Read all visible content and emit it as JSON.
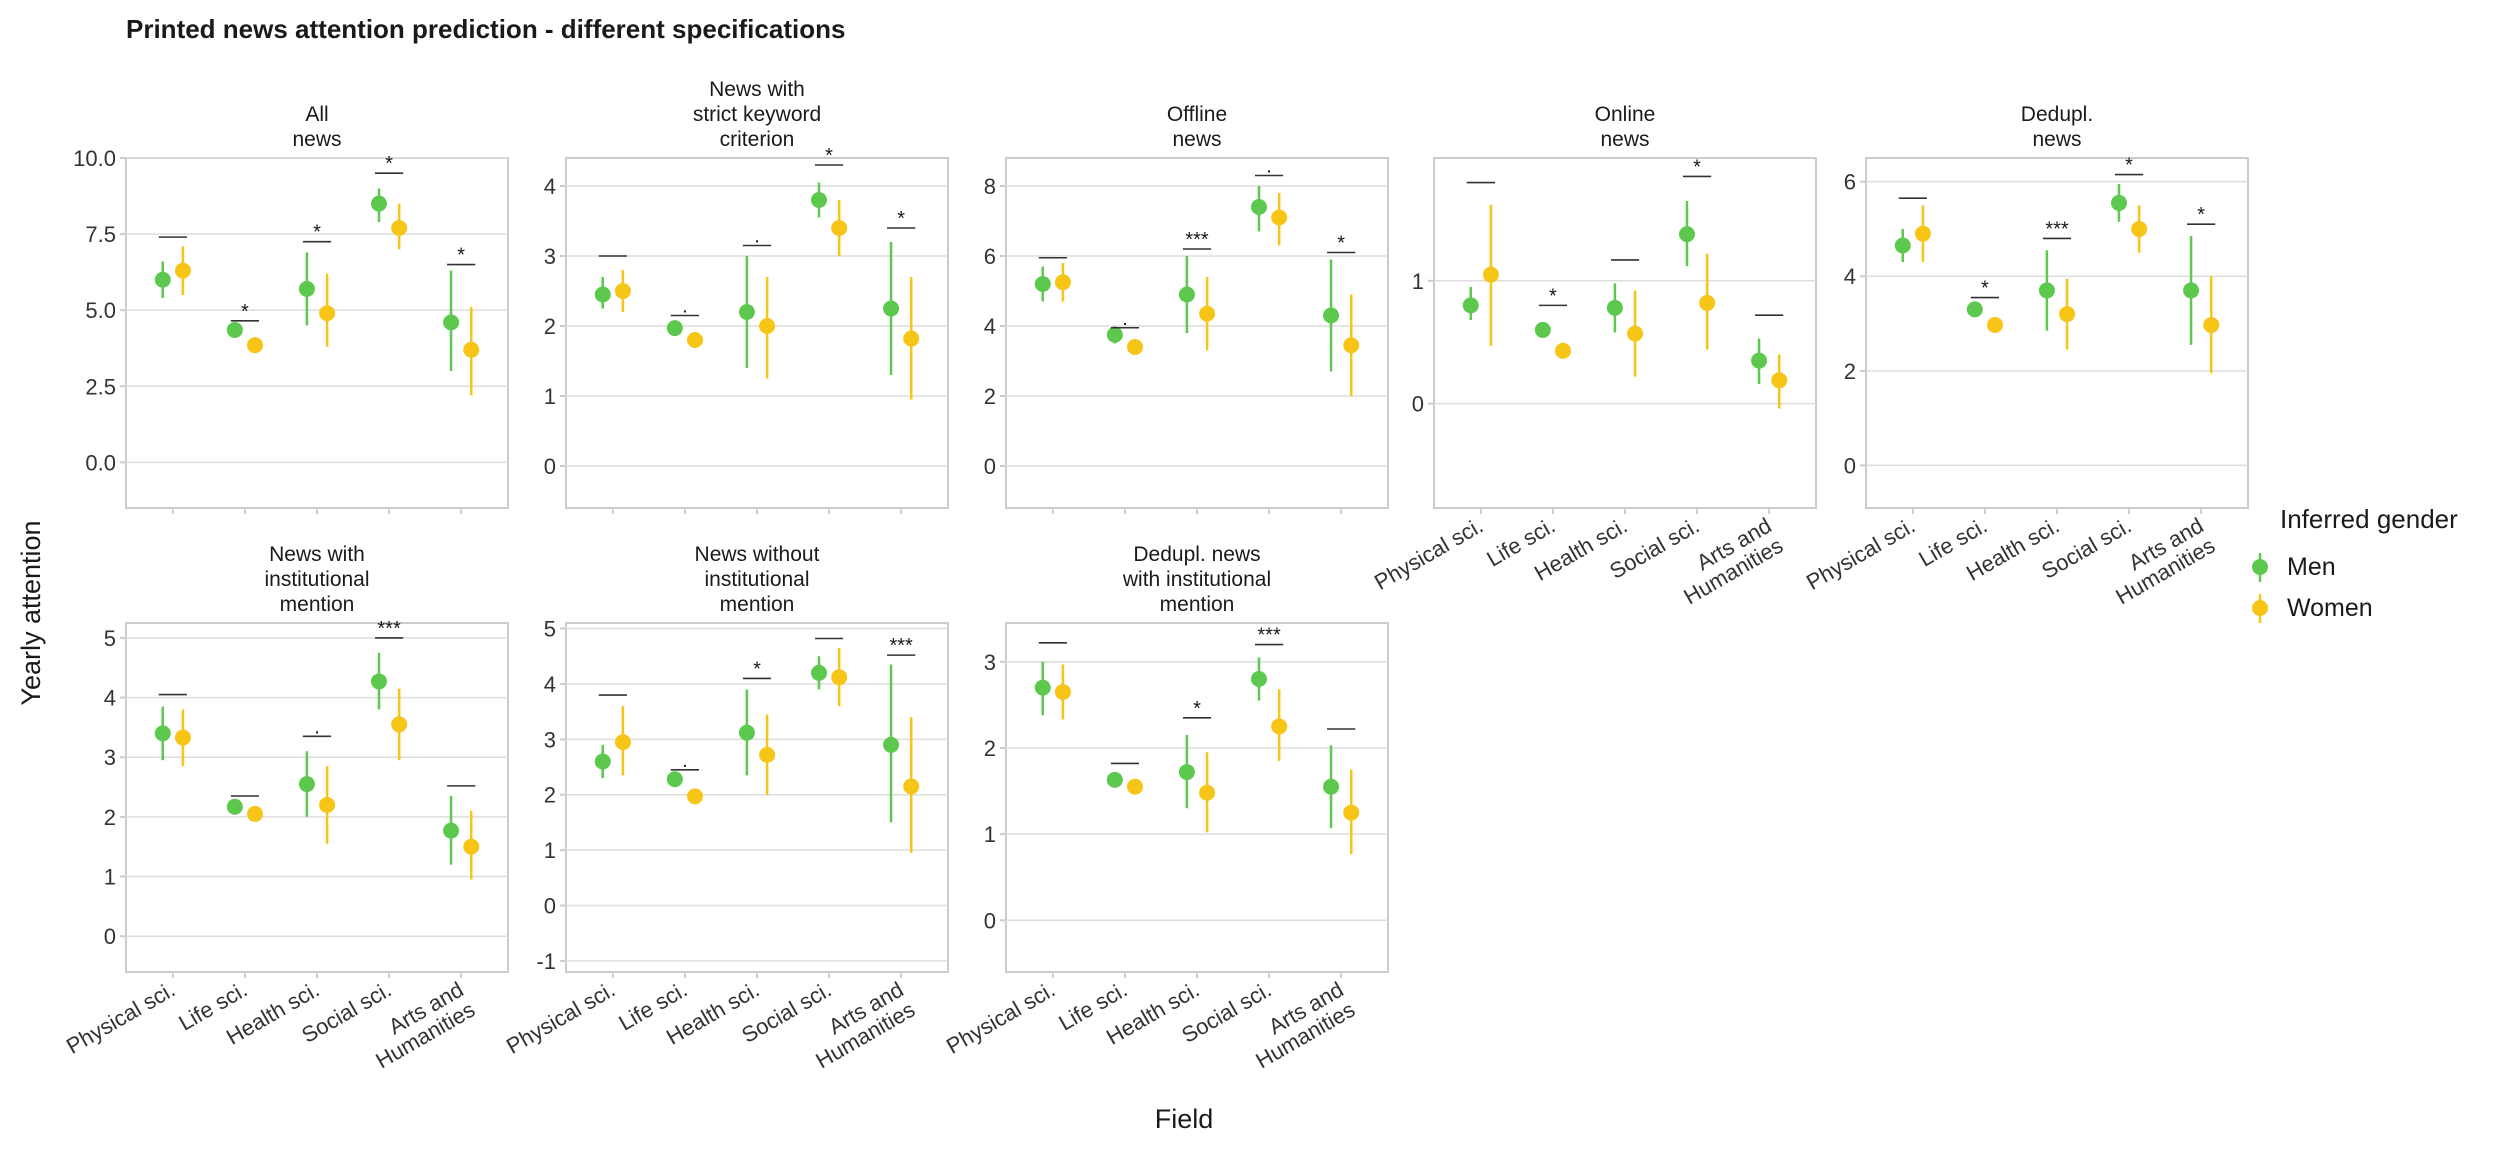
{
  "title": "Printed news attention prediction - different specifications",
  "colors": {
    "men": "#5cc94e",
    "women": "#f6c518"
  },
  "chart_data": {
    "type": "scatter",
    "xlabel": "Field",
    "ylabel": "Yearly attention",
    "categories": [
      "Physical sci.",
      "Life sci.",
      "Health sci.",
      "Social sci.",
      "Arts and Humanities"
    ],
    "category_lines": [
      [
        "Physical sci."
      ],
      [
        "Life sci."
      ],
      [
        "Health sci."
      ],
      [
        "Social sci."
      ],
      [
        "Arts and",
        "Humanities"
      ]
    ],
    "legend": {
      "title": "Inferred gender",
      "position": "right",
      "entries": [
        "Men",
        "Women"
      ]
    },
    "panels": [
      {
        "title_lines": [
          "All",
          "news"
        ],
        "ylim": [
          -1.5,
          10
        ],
        "yticks": [
          0,
          2.5,
          5,
          7.5,
          10
        ],
        "ytick_labels": [
          "0.0",
          "2.5",
          "5.0",
          "7.5",
          "10.0"
        ],
        "men": {
          "y": [
            6.0,
            4.35,
            5.7,
            8.5,
            4.6
          ],
          "lo": [
            5.4,
            4.1,
            4.5,
            7.9,
            3.0
          ],
          "hi": [
            6.6,
            4.6,
            6.9,
            9.0,
            6.3
          ]
        },
        "women": {
          "y": [
            6.3,
            3.85,
            4.9,
            7.7,
            3.7
          ],
          "lo": [
            5.5,
            3.6,
            3.8,
            7.0,
            2.2
          ],
          "hi": [
            7.1,
            4.1,
            6.2,
            8.5,
            5.1
          ]
        },
        "signif": [
          "",
          "*",
          "*",
          "*",
          "*"
        ],
        "bracket_y": [
          7.4,
          4.65,
          7.25,
          9.5,
          6.5
        ]
      },
      {
        "title_lines": [
          "News with",
          "strict keyword",
          "criterion"
        ],
        "ylim": [
          -0.6,
          4.4
        ],
        "yticks": [
          0,
          1,
          2,
          3,
          4
        ],
        "ytick_labels": [
          "0",
          "1",
          "2",
          "3",
          "4"
        ],
        "men": {
          "y": [
            2.45,
            1.97,
            2.2,
            3.8,
            2.25
          ],
          "lo": [
            2.25,
            1.9,
            1.4,
            3.55,
            1.3
          ],
          "hi": [
            2.7,
            2.05,
            3.0,
            4.05,
            3.2
          ]
        },
        "women": {
          "y": [
            2.5,
            1.8,
            2.0,
            3.4,
            1.82
          ],
          "lo": [
            2.2,
            1.7,
            1.25,
            3.0,
            0.95
          ],
          "hi": [
            2.8,
            1.9,
            2.7,
            3.8,
            2.7
          ]
        },
        "signif": [
          "",
          ".",
          ".",
          "*",
          "*"
        ],
        "bracket_y": [
          3.0,
          2.15,
          3.15,
          4.3,
          3.4
        ]
      },
      {
        "title_lines": [
          "Offline",
          "news"
        ],
        "ylim": [
          -1.2,
          8.8
        ],
        "yticks": [
          0,
          2,
          4,
          6,
          8
        ],
        "ytick_labels": [
          "0",
          "2",
          "4",
          "6",
          "8"
        ],
        "men": {
          "y": [
            5.2,
            3.75,
            4.9,
            7.4,
            4.3
          ],
          "lo": [
            4.7,
            3.5,
            3.8,
            6.7,
            2.7
          ],
          "hi": [
            5.7,
            4.0,
            6.0,
            8.0,
            5.9
          ]
        },
        "women": {
          "y": [
            5.25,
            3.4,
            4.35,
            7.1,
            3.45
          ],
          "lo": [
            4.7,
            3.2,
            3.3,
            6.3,
            2.0
          ],
          "hi": [
            5.8,
            3.6,
            5.4,
            7.8,
            4.9
          ]
        },
        "signif": [
          "",
          ".",
          "***",
          ".",
          "*"
        ],
        "bracket_y": [
          5.95,
          3.95,
          6.2,
          8.3,
          6.1
        ]
      },
      {
        "title_lines": [
          "Online",
          "news"
        ],
        "ylim": [
          -0.85,
          2.0
        ],
        "yticks": [
          0,
          1
        ],
        "ytick_labels": [
          "0",
          "1"
        ],
        "men": {
          "y": [
            0.8,
            0.6,
            0.78,
            1.38,
            0.35
          ],
          "lo": [
            0.68,
            0.55,
            0.58,
            1.12,
            0.16
          ],
          "hi": [
            0.95,
            0.65,
            0.98,
            1.65,
            0.53
          ]
        },
        "women": {
          "y": [
            1.05,
            0.43,
            0.57,
            0.82,
            0.19
          ],
          "lo": [
            0.47,
            0.38,
            0.22,
            0.44,
            -0.04
          ],
          "hi": [
            1.62,
            0.48,
            0.92,
            1.22,
            0.4
          ]
        },
        "signif": [
          "",
          "*",
          "",
          "*",
          ""
        ],
        "bracket_y": [
          1.8,
          0.8,
          1.17,
          1.85,
          0.72
        ]
      },
      {
        "title_lines": [
          "Dedupl.",
          "news"
        ],
        "ylim": [
          -0.9,
          6.5
        ],
        "yticks": [
          0,
          2,
          4,
          6
        ],
        "ytick_labels": [
          "0",
          "2",
          "4",
          "6"
        ],
        "men": {
          "y": [
            4.65,
            3.3,
            3.7,
            5.55,
            3.7
          ],
          "lo": [
            4.3,
            3.2,
            2.85,
            5.15,
            2.55
          ],
          "hi": [
            5.0,
            3.45,
            4.55,
            5.95,
            4.85
          ]
        },
        "women": {
          "y": [
            4.9,
            2.97,
            3.2,
            5.0,
            2.97
          ],
          "lo": [
            4.3,
            2.85,
            2.45,
            4.5,
            1.95
          ],
          "hi": [
            5.5,
            3.1,
            3.95,
            5.5,
            4.0
          ]
        },
        "signif": [
          "",
          "*",
          "***",
          "*",
          "*"
        ],
        "bracket_y": [
          5.65,
          3.55,
          4.8,
          6.15,
          5.1
        ]
      },
      {
        "title_lines": [
          "News with",
          "institutional",
          "mention"
        ],
        "ylim": [
          -0.6,
          5.25
        ],
        "yticks": [
          0,
          1,
          2,
          3,
          4,
          5
        ],
        "ytick_labels": [
          "0",
          "1",
          "2",
          "3",
          "4",
          "5"
        ],
        "men": {
          "y": [
            3.4,
            2.17,
            2.55,
            4.27,
            1.77
          ],
          "lo": [
            2.95,
            2.05,
            2.0,
            3.8,
            1.2
          ],
          "hi": [
            3.85,
            2.3,
            3.1,
            4.75,
            2.35
          ]
        },
        "women": {
          "y": [
            3.33,
            2.05,
            2.2,
            3.55,
            1.5
          ],
          "lo": [
            2.85,
            1.95,
            1.55,
            2.95,
            0.95
          ],
          "hi": [
            3.8,
            2.15,
            2.85,
            4.15,
            2.1
          ]
        },
        "signif": [
          "",
          "",
          ".",
          "***",
          ""
        ],
        "bracket_y": [
          4.05,
          2.35,
          3.35,
          5.0,
          2.52
        ]
      },
      {
        "title_lines": [
          "News without",
          "institutional",
          "mention"
        ],
        "ylim": [
          -1.2,
          5.1
        ],
        "yticks": [
          -1,
          0,
          1,
          2,
          3,
          4,
          5
        ],
        "ytick_labels": [
          "-1",
          "0",
          "1",
          "2",
          "3",
          "4",
          "5"
        ],
        "men": {
          "y": [
            2.6,
            2.28,
            3.12,
            4.2,
            2.9
          ],
          "lo": [
            2.3,
            2.15,
            2.35,
            3.9,
            1.5
          ],
          "hi": [
            2.9,
            2.4,
            3.9,
            4.5,
            4.35
          ]
        },
        "women": {
          "y": [
            2.95,
            1.97,
            2.72,
            4.12,
            2.15
          ],
          "lo": [
            2.35,
            1.87,
            2.0,
            3.6,
            0.95
          ],
          "hi": [
            3.6,
            2.1,
            3.45,
            4.65,
            3.4
          ]
        },
        "signif": [
          "",
          ".",
          "*",
          "",
          "***"
        ],
        "bracket_y": [
          3.8,
          2.45,
          4.1,
          4.82,
          4.52
        ]
      },
      {
        "title_lines": [
          "Dedupl. news",
          "with institutional",
          "mention"
        ],
        "ylim": [
          -0.6,
          3.45
        ],
        "yticks": [
          0,
          1,
          2,
          3
        ],
        "ytick_labels": [
          "0",
          "1",
          "2",
          "3"
        ],
        "men": {
          "y": [
            2.7,
            1.63,
            1.72,
            2.8,
            1.55
          ],
          "lo": [
            2.38,
            1.57,
            1.3,
            2.55,
            1.07
          ],
          "hi": [
            3.0,
            1.7,
            2.15,
            3.05,
            2.03
          ]
        },
        "women": {
          "y": [
            2.65,
            1.55,
            1.48,
            2.25,
            1.25
          ],
          "lo": [
            2.33,
            1.5,
            1.02,
            1.85,
            0.77
          ],
          "hi": [
            2.97,
            1.6,
            1.95,
            2.68,
            1.75
          ]
        },
        "signif": [
          "",
          "",
          "*",
          "***",
          ""
        ],
        "bracket_y": [
          3.22,
          1.82,
          2.35,
          3.2,
          2.22
        ]
      }
    ]
  }
}
